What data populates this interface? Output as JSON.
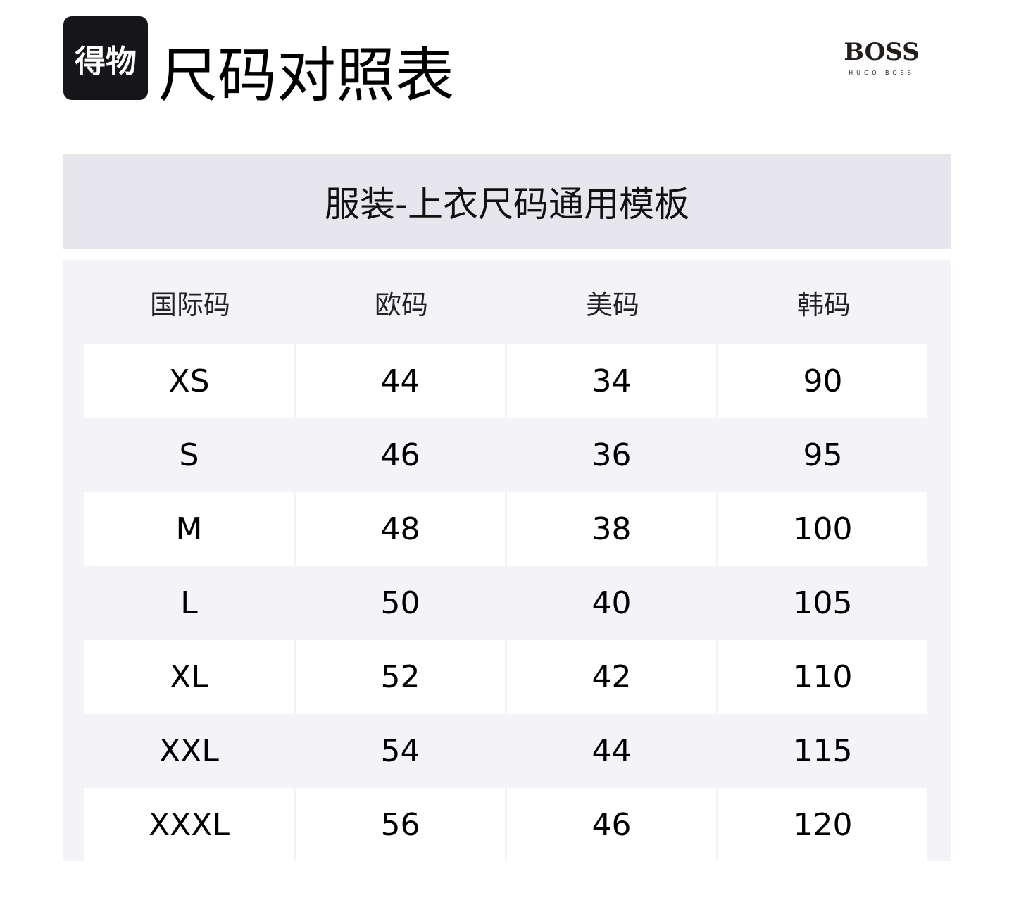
{
  "logo": {
    "text": "得物"
  },
  "title": "尺码对照表",
  "brand": {
    "name": "BOSS",
    "sub": "HUGO BOSS"
  },
  "section_title": "服装-上衣尺码通用模板",
  "table": {
    "headers": [
      "国际码",
      "欧码",
      "美码",
      "韩码"
    ],
    "rows": [
      [
        "XS",
        "44",
        "34",
        "90"
      ],
      [
        "S",
        "46",
        "36",
        "95"
      ],
      [
        "M",
        "48",
        "38",
        "100"
      ],
      [
        "L",
        "50",
        "40",
        "105"
      ],
      [
        "XL",
        "52",
        "42",
        "110"
      ],
      [
        "XXL",
        "54",
        "44",
        "115"
      ],
      [
        "XXXL",
        "56",
        "46",
        "120"
      ]
    ]
  }
}
